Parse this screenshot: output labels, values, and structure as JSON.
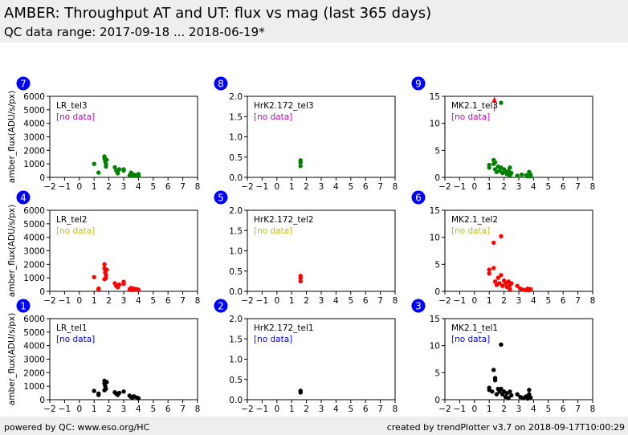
{
  "header": {
    "title": "AMBER: Throughput AT and UT: flux vs mag (last 365 days)",
    "subtitle": "QC data range: 2017-09-18 ... 2018-06-19*"
  },
  "footer": {
    "left": "powered by QC: www.eso.org/HC",
    "right": "created by trendPlotter v3.7 on 2018-09-17T10:00:29"
  },
  "colors": {
    "red": "#ff0000",
    "green": "#008000",
    "black": "#000000",
    "blue_badge": "#0000ff",
    "magenta": "#bf00bf",
    "yellow": "#bfbf00",
    "blue_text": "#0000ff"
  },
  "chart_data": [
    {
      "type": "scatter",
      "panel": "7",
      "label": "LR_tel3",
      "nodata": "[no data]",
      "nodata_color": "#bf00bf",
      "color": "#008000",
      "ylabel": "amber_flux(ADU/s/px)",
      "xlim": [
        -2,
        8
      ],
      "ylim": [
        0,
        6000
      ],
      "yticks": [
        "0",
        "1000",
        "2000",
        "3000",
        "4000",
        "5000",
        "6000"
      ],
      "xticks": [
        "−2",
        "−1",
        "0",
        "1",
        "2",
        "3",
        "4",
        "5",
        "6",
        "7",
        "8"
      ],
      "points": [
        [
          1.0,
          1000
        ],
        [
          1.3,
          350
        ],
        [
          1.7,
          1550
        ],
        [
          1.7,
          1400
        ],
        [
          1.75,
          1200
        ],
        [
          1.8,
          1000
        ],
        [
          1.8,
          800
        ],
        [
          1.85,
          1300
        ],
        [
          2.4,
          750
        ],
        [
          2.5,
          500
        ],
        [
          2.6,
          400
        ],
        [
          2.6,
          300
        ],
        [
          2.7,
          600
        ],
        [
          3.0,
          500
        ],
        [
          3.0,
          600
        ],
        [
          3.4,
          150
        ],
        [
          3.5,
          250
        ],
        [
          3.5,
          350
        ],
        [
          3.6,
          100
        ],
        [
          3.7,
          200
        ],
        [
          3.9,
          150
        ],
        [
          4.0,
          250
        ],
        [
          4.0,
          100
        ]
      ]
    },
    {
      "type": "scatter",
      "panel": "8",
      "label": "HrK2.172_tel3",
      "nodata": "[no data]",
      "nodata_color": "#bf00bf",
      "color": "#008000",
      "ylabel": "",
      "xlim": [
        -2,
        8
      ],
      "ylim": [
        0,
        2.0
      ],
      "yticks": [
        "0.0",
        "0.5",
        "1.0",
        "1.5",
        "2.0"
      ],
      "xticks": [
        "−2",
        "−1",
        "0",
        "1",
        "2",
        "3",
        "4",
        "5",
        "6",
        "7",
        "8"
      ],
      "points": [
        [
          1.6,
          0.42
        ],
        [
          1.6,
          0.37
        ],
        [
          1.6,
          0.28
        ]
      ]
    },
    {
      "type": "scatter",
      "panel": "9",
      "label": "MK2.1_tel3",
      "nodata": "[no data]",
      "nodata_color": "#bf00bf",
      "color": "#008000",
      "ylabel": "",
      "xlim": [
        -2,
        8
      ],
      "ylim": [
        0,
        15
      ],
      "yticks": [
        "0",
        "5",
        "10",
        "15"
      ],
      "xticks": [
        "−2",
        "−1",
        "0",
        "1",
        "2",
        "3",
        "4",
        "5",
        "6",
        "7",
        "8"
      ],
      "outlier": {
        "x": 1.35,
        "y": 14.5,
        "y_low": 12.2,
        "color": "#ff0000"
      },
      "points": [
        [
          1.8,
          13.8
        ],
        [
          1.0,
          2.3
        ],
        [
          1.0,
          1.8
        ],
        [
          1.3,
          3.2
        ],
        [
          1.3,
          2.5
        ],
        [
          1.4,
          1.5
        ],
        [
          1.4,
          2.8
        ],
        [
          1.5,
          1.0
        ],
        [
          1.6,
          2.0
        ],
        [
          1.7,
          1.2
        ],
        [
          1.8,
          1.8
        ],
        [
          1.9,
          0.8
        ],
        [
          2.0,
          1.5
        ],
        [
          2.1,
          1.0
        ],
        [
          2.2,
          0.6
        ],
        [
          2.3,
          1.2
        ],
        [
          2.4,
          0.4
        ],
        [
          2.4,
          1.8
        ],
        [
          2.5,
          0.8
        ],
        [
          2.9,
          0.3
        ],
        [
          3.2,
          0.5
        ],
        [
          3.5,
          0.4
        ],
        [
          3.6,
          0.2
        ],
        [
          3.7,
          1.0
        ],
        [
          3.8,
          0.5
        ],
        [
          3.8,
          0.2
        ]
      ]
    },
    {
      "type": "scatter",
      "panel": "4",
      "label": "LR_tel2",
      "nodata": "[no data]",
      "nodata_color": "#bfbf00",
      "color": "#ff0000",
      "ylabel": "amber_flux(ADU/s/px)",
      "xlim": [
        -2,
        8
      ],
      "ylim": [
        0,
        6000
      ],
      "yticks": [
        "0",
        "1000",
        "2000",
        "3000",
        "4000",
        "5000",
        "6000"
      ],
      "xticks": [
        "−2",
        "−1",
        "0",
        "1",
        "2",
        "3",
        "4",
        "5",
        "6",
        "7",
        "8"
      ],
      "points": [
        [
          1.0,
          1050
        ],
        [
          1.3,
          200
        ],
        [
          1.3,
          150
        ],
        [
          1.7,
          2000
        ],
        [
          1.7,
          1700
        ],
        [
          1.75,
          1400
        ],
        [
          1.8,
          1200
        ],
        [
          1.8,
          1000
        ],
        [
          1.85,
          1600
        ],
        [
          1.7,
          900
        ],
        [
          2.4,
          600
        ],
        [
          2.5,
          400
        ],
        [
          2.6,
          300
        ],
        [
          2.7,
          500
        ],
        [
          3.0,
          700
        ],
        [
          3.0,
          550
        ],
        [
          3.4,
          150
        ],
        [
          3.5,
          250
        ],
        [
          3.6,
          100
        ],
        [
          3.7,
          200
        ],
        [
          3.9,
          150
        ],
        [
          4.0,
          120
        ]
      ]
    },
    {
      "type": "scatter",
      "panel": "5",
      "label": "HrK2.172_tel2",
      "nodata": "[no data]",
      "nodata_color": "#bfbf00",
      "color": "#ff0000",
      "ylabel": "",
      "xlim": [
        -2,
        8
      ],
      "ylim": [
        0,
        2.0
      ],
      "yticks": [
        "0.0",
        "0.5",
        "1.0",
        "1.5",
        "2.0"
      ],
      "xticks": [
        "−2",
        "−1",
        "0",
        "1",
        "2",
        "3",
        "4",
        "5",
        "6",
        "7",
        "8"
      ],
      "points": [
        [
          1.6,
          0.38
        ],
        [
          1.6,
          0.33
        ],
        [
          1.6,
          0.25
        ]
      ]
    },
    {
      "type": "scatter",
      "panel": "6",
      "label": "MK2.1_tel2",
      "nodata": "[no data]",
      "nodata_color": "#bfbf00",
      "color": "#ff0000",
      "ylabel": "",
      "xlim": [
        -2,
        8
      ],
      "ylim": [
        0,
        15
      ],
      "yticks": [
        "0",
        "5",
        "10",
        "15"
      ],
      "xticks": [
        "−2",
        "−1",
        "0",
        "1",
        "2",
        "3",
        "4",
        "5",
        "6",
        "7",
        "8"
      ],
      "points": [
        [
          1.8,
          10.2
        ],
        [
          1.3,
          9.0
        ],
        [
          1.0,
          4.0
        ],
        [
          1.0,
          3.3
        ],
        [
          1.3,
          4.3
        ],
        [
          1.4,
          1.8
        ],
        [
          1.5,
          1.2
        ],
        [
          1.6,
          2.5
        ],
        [
          1.7,
          1.5
        ],
        [
          1.8,
          3.0
        ],
        [
          1.9,
          1.0
        ],
        [
          2.0,
          2.0
        ],
        [
          2.1,
          1.5
        ],
        [
          2.2,
          0.8
        ],
        [
          2.3,
          1.8
        ],
        [
          2.4,
          1.2
        ],
        [
          2.4,
          0.4
        ],
        [
          2.5,
          1.5
        ],
        [
          2.9,
          1.0
        ],
        [
          3.1,
          0.5
        ],
        [
          3.3,
          0.3
        ],
        [
          3.5,
          0.2
        ],
        [
          3.6,
          0.5
        ],
        [
          3.7,
          0.2
        ],
        [
          3.8,
          0.4
        ]
      ]
    },
    {
      "type": "scatter",
      "panel": "1",
      "label": "LR_tel1",
      "nodata": "[no data]",
      "nodata_color": "#0000ff",
      "color": "#000000",
      "ylabel": "amber_flux(ADU/s/px)",
      "xlim": [
        -2,
        8
      ],
      "ylim": [
        0,
        6000
      ],
      "yticks": [
        "0",
        "1000",
        "2000",
        "3000",
        "4000",
        "5000",
        "6000"
      ],
      "xticks": [
        "−2",
        "−1",
        "0",
        "1",
        "2",
        "3",
        "4",
        "5",
        "6",
        "7",
        "8"
      ],
      "points": [
        [
          1.0,
          650
        ],
        [
          1.3,
          450
        ],
        [
          1.3,
          350
        ],
        [
          1.7,
          1400
        ],
        [
          1.7,
          1200
        ],
        [
          1.75,
          1000
        ],
        [
          1.8,
          800
        ],
        [
          1.85,
          1300
        ],
        [
          1.7,
          700
        ],
        [
          2.4,
          550
        ],
        [
          2.5,
          450
        ],
        [
          2.6,
          350
        ],
        [
          2.7,
          500
        ],
        [
          3.0,
          600
        ],
        [
          3.4,
          300
        ],
        [
          3.5,
          200
        ],
        [
          3.6,
          150
        ],
        [
          3.7,
          250
        ],
        [
          3.9,
          150
        ],
        [
          4.0,
          100
        ]
      ]
    },
    {
      "type": "scatter",
      "panel": "2",
      "label": "HrK2.172_tel1",
      "nodata": "[no data]",
      "nodata_color": "#0000ff",
      "color": "#000000",
      "ylabel": "",
      "xlim": [
        -2,
        8
      ],
      "ylim": [
        0,
        2.0
      ],
      "yticks": [
        "0.0",
        "0.5",
        "1.0",
        "1.5",
        "2.0"
      ],
      "xticks": [
        "−2",
        "−1",
        "0",
        "1",
        "2",
        "3",
        "4",
        "5",
        "6",
        "7",
        "8"
      ],
      "points": [
        [
          1.6,
          0.22
        ],
        [
          1.6,
          0.18
        ]
      ]
    },
    {
      "type": "scatter",
      "panel": "3",
      "label": "MK2.1_tel1",
      "nodata": "[no data]",
      "nodata_color": "#0000ff",
      "color": "#000000",
      "ylabel": "",
      "xlim": [
        -2,
        8
      ],
      "ylim": [
        0,
        15
      ],
      "yticks": [
        "0",
        "5",
        "10",
        "15"
      ],
      "xticks": [
        "−2",
        "−1",
        "0",
        "1",
        "2",
        "3",
        "4",
        "5",
        "6",
        "7",
        "8"
      ],
      "points": [
        [
          1.8,
          10.2
        ],
        [
          1.3,
          5.5
        ],
        [
          1.4,
          4.0
        ],
        [
          1.4,
          3.6
        ],
        [
          1.0,
          2.2
        ],
        [
          1.0,
          1.8
        ],
        [
          1.2,
          1.5
        ],
        [
          1.5,
          1.0
        ],
        [
          1.6,
          2.0
        ],
        [
          1.7,
          1.5
        ],
        [
          1.8,
          2.0
        ],
        [
          1.9,
          1.0
        ],
        [
          2.0,
          1.5
        ],
        [
          2.1,
          0.5
        ],
        [
          2.2,
          1.2
        ],
        [
          2.3,
          0.3
        ],
        [
          2.4,
          1.5
        ],
        [
          2.5,
          0.8
        ],
        [
          2.9,
          1.0
        ],
        [
          3.1,
          0.5
        ],
        [
          3.3,
          0.3
        ],
        [
          3.5,
          0.6
        ],
        [
          3.6,
          0.2
        ],
        [
          3.7,
          1.8
        ],
        [
          3.7,
          1.0
        ],
        [
          3.8,
          0.4
        ]
      ]
    }
  ]
}
